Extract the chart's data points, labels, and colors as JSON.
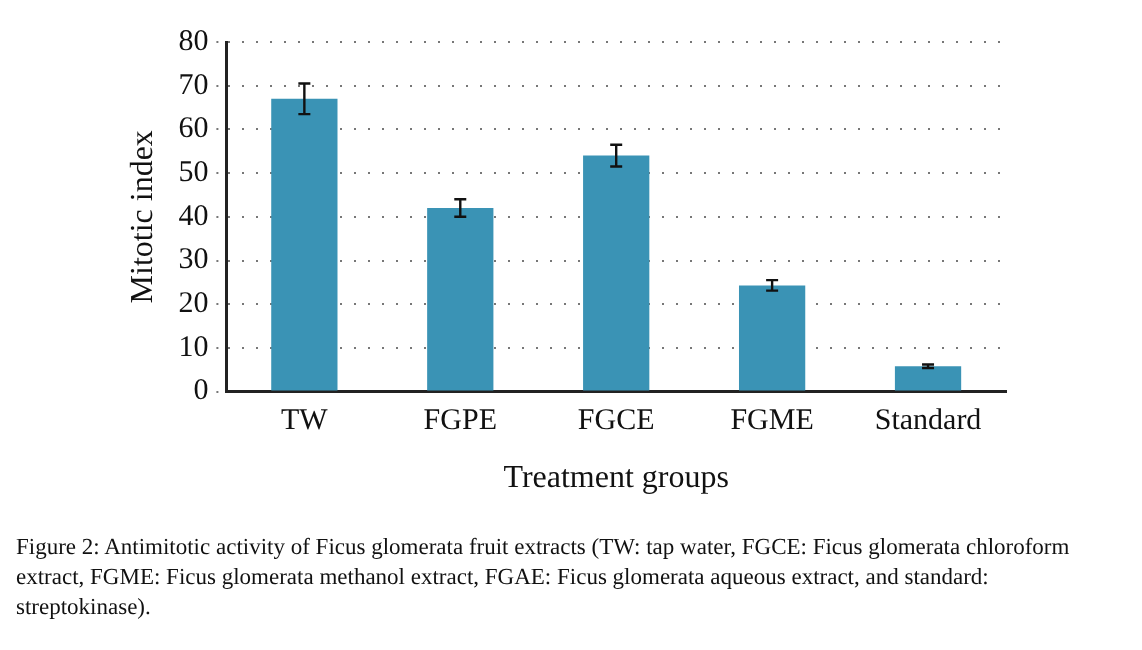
{
  "chart_data": {
    "type": "bar",
    "xlabel": "Treatment groups",
    "ylabel": "Mitotic index",
    "categories": [
      "TW",
      "FGPE",
      "FGCE",
      "FGME",
      "Standard"
    ],
    "values": [
      67,
      42,
      54,
      24.3,
      5.8
    ],
    "errors": [
      3.5,
      2,
      2.5,
      1.2,
      0.4
    ],
    "color": "#3a93b5",
    "ylim": [
      0,
      80
    ],
    "yticks": [
      0,
      10,
      20,
      30,
      40,
      50,
      60,
      70,
      80
    ],
    "grid": "y",
    "legend": false,
    "annotations": [
      "Figure 2: Antimitotic activity of Ficus glomerata fruit extracts (TW: tap water, FGCE: Ficus glomerata chloroform extract, FGME: Ficus glomerata methanol extract, FGAE: Ficus glomerata aqueous extract, and standard: streptokinase)."
    ]
  }
}
